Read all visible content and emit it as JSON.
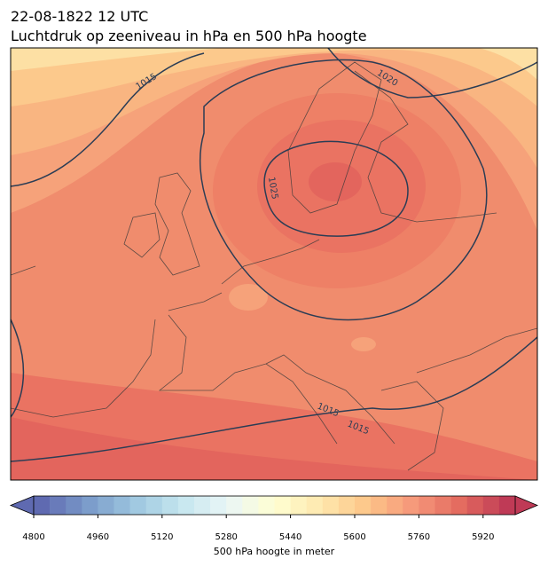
{
  "header": {
    "title": "22-08-1822 12 UTC",
    "subtitle": "Luchtdruk op zeeniveau in hPa en 500 hPa hoogte"
  },
  "map": {
    "contour_labels": [
      1015,
      1020,
      1025,
      1015,
      1015
    ]
  },
  "colorbar": {
    "label": "500 hPa hoogte in meter",
    "lim": [
      4800,
      6000
    ],
    "ticks": [
      4800,
      4960,
      5120,
      5280,
      5440,
      5600,
      5760,
      5920
    ],
    "levels": [
      4800,
      4840,
      4880,
      4920,
      4960,
      5000,
      5040,
      5080,
      5120,
      5160,
      5200,
      5240,
      5280,
      5320,
      5360,
      5400,
      5440,
      5480,
      5520,
      5560,
      5600,
      5640,
      5680,
      5720,
      5760,
      5800,
      5840,
      5880,
      5920,
      5960,
      6000
    ],
    "colormap": [
      "#5f6ab1",
      "#7b9bca",
      "#9ec7e0",
      "#c5e6ef",
      "#eaf6f6",
      "#ffffd2",
      "#fee8ae",
      "#fdc588",
      "#f6977a",
      "#e36a5f",
      "#bf3a56"
    ]
  }
}
